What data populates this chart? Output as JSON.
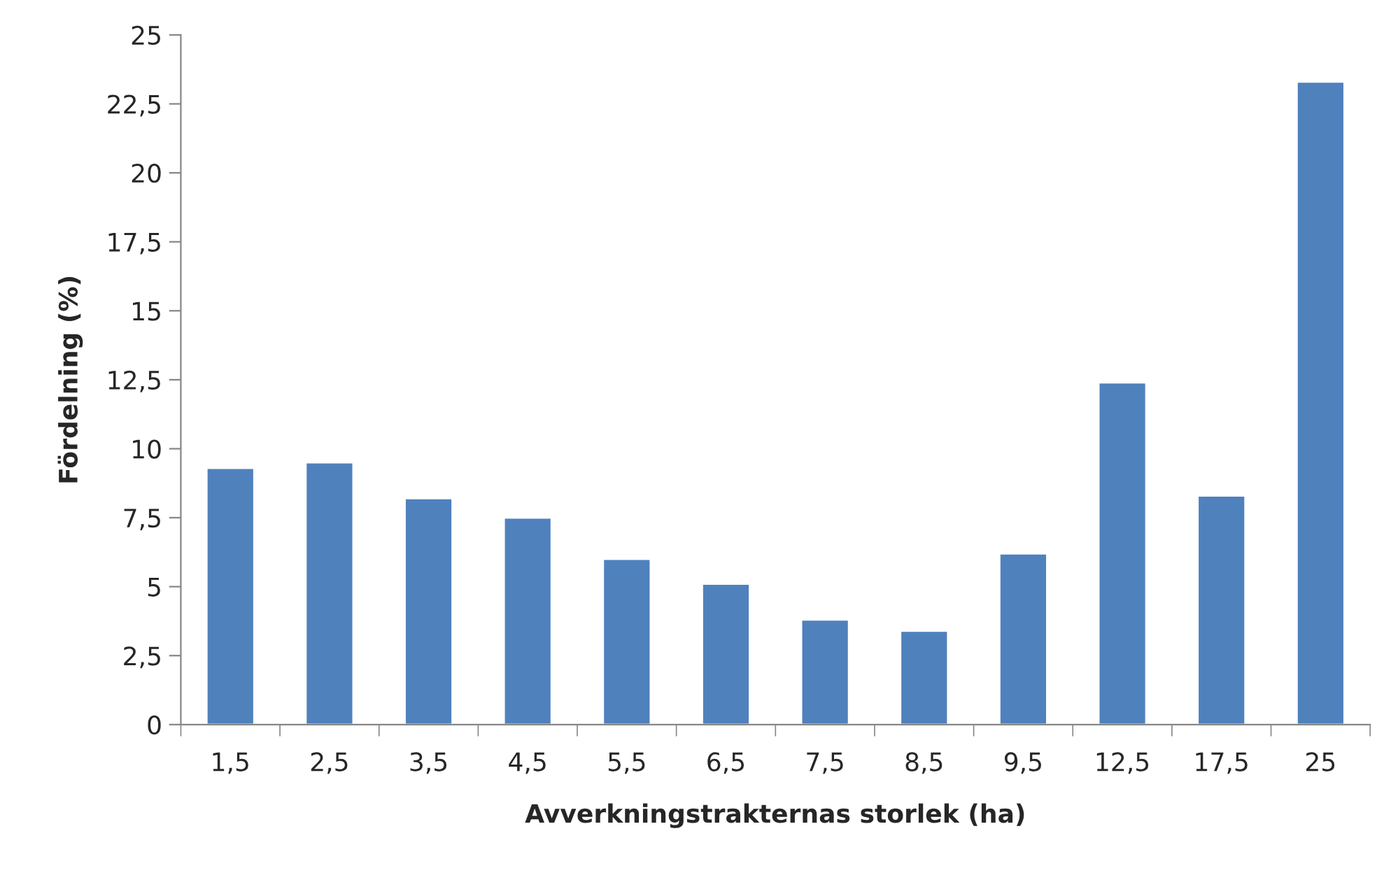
{
  "chart_data": {
    "type": "bar",
    "xlabel": "Avverkningstrakternas storlek (ha)",
    "ylabel": "Fördelning (%)",
    "categories": [
      "1,5",
      "2,5",
      "3,5",
      "4,5",
      "5,5",
      "6,5",
      "7,5",
      "8,5",
      "9,5",
      "12,5",
      "17,5",
      "25"
    ],
    "values": [
      9.3,
      9.5,
      8.2,
      7.5,
      6.0,
      5.1,
      3.8,
      3.4,
      6.2,
      12.4,
      8.3,
      23.3
    ],
    "color": "#4f81bd",
    "ylim": [
      0,
      25
    ],
    "yticks": [
      0,
      {
        "value": 2.5,
        "label": "2,5"
      },
      5,
      {
        "value": 7.5,
        "label": "7,5"
      },
      10,
      {
        "value": 12.5,
        "label": "12,5"
      },
      15,
      {
        "value": 17.5,
        "label": "17,5"
      },
      20,
      {
        "value": 22.5,
        "label": "22,5"
      },
      25
    ],
    "grid": false,
    "legend": false
  }
}
